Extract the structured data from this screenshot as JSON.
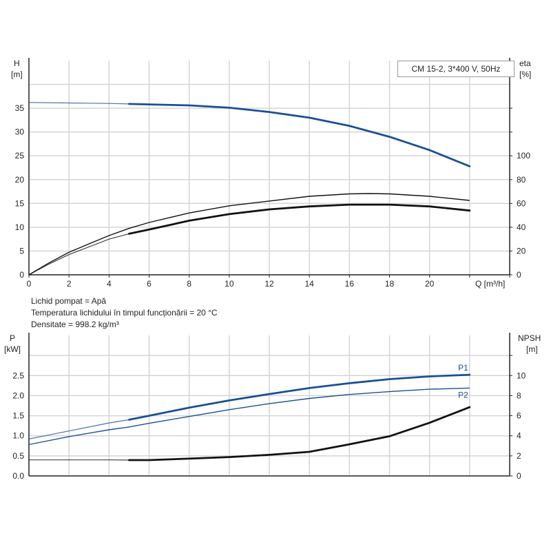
{
  "chart_data": [
    {
      "type": "line",
      "title": "CM 15-2, 3*400 V, 50Hz",
      "xlabel": "Q [m³/h]",
      "ylabel": "H [m]",
      "ylabel_name": "H",
      "ylabel_unit": "[m]",
      "y2label_name": "eta",
      "y2label_unit": "[%]",
      "xlim": [
        0,
        24
      ],
      "ylim": [
        0,
        45
      ],
      "y2lim": [
        0,
        180
      ],
      "x_ticks": [
        "0",
        "2",
        "4",
        "6",
        "8",
        "10",
        "12",
        "14",
        "16",
        "18",
        "20"
      ],
      "y_ticks": [
        "0",
        "5",
        "10",
        "15",
        "20",
        "25",
        "30",
        "35"
      ],
      "y2_ticks": [
        "0",
        "20",
        "40",
        "60",
        "80",
        "100"
      ],
      "grid": true,
      "series": [
        {
          "axis": "left",
          "color": "#1a4f94",
          "x": [
            0,
            2,
            4,
            5,
            6,
            8,
            10,
            12,
            14,
            16,
            18,
            20,
            22
          ],
          "y": [
            36.2,
            36.1,
            36.0,
            35.9,
            35.8,
            35.6,
            35.1,
            34.2,
            33.0,
            31.3,
            29.0,
            26.2,
            22.8
          ]
        },
        {
          "axis": "right",
          "color": "#111111",
          "x": [
            0,
            1,
            2,
            4,
            5,
            6,
            8,
            10,
            12,
            14,
            16,
            17,
            18,
            20,
            22
          ],
          "y": [
            0,
            10,
            19,
            33,
            39,
            44,
            52,
            58,
            62,
            66,
            68,
            68.3,
            68,
            66,
            62.5
          ]
        },
        {
          "axis": "right",
          "color": "#111111",
          "x": [
            0,
            1,
            2,
            4,
            5,
            6,
            8,
            10,
            12,
            14,
            16,
            18,
            20,
            22
          ],
          "y": [
            0,
            9,
            17,
            30,
            34.5,
            38,
            45.5,
            51,
            55,
            57.5,
            59,
            59,
            57.5,
            54
          ]
        }
      ]
    },
    {
      "type": "line",
      "xlim": [
        0,
        24
      ],
      "ylim": [
        0,
        3.5
      ],
      "y2lim": [
        0,
        14
      ],
      "ylabel_name": "P",
      "ylabel_unit": "[kW]",
      "y2label_name": "NPSH",
      "y2label_unit": "[m]",
      "y_ticks": [
        "0.0",
        "0.5",
        "1.0",
        "1.5",
        "2.0",
        "2.5"
      ],
      "y2_ticks": [
        "0",
        "2",
        "4",
        "6",
        "8",
        "10"
      ],
      "grid": true,
      "series": [
        {
          "name": "P1",
          "axis": "left",
          "color": "#1a4f94",
          "x": [
            0,
            2,
            4,
            5,
            6,
            8,
            10,
            12,
            14,
            16,
            18,
            20,
            22
          ],
          "y": [
            0.92,
            1.12,
            1.32,
            1.4,
            1.5,
            1.7,
            1.88,
            2.04,
            2.19,
            2.31,
            2.41,
            2.48,
            2.52
          ]
        },
        {
          "name": "P2",
          "axis": "left",
          "color": "#1a4f94",
          "x": [
            0,
            2,
            4,
            5,
            6,
            8,
            10,
            12,
            14,
            16,
            18,
            20,
            22
          ],
          "y": [
            0.78,
            0.98,
            1.15,
            1.22,
            1.31,
            1.48,
            1.65,
            1.8,
            1.93,
            2.03,
            2.1,
            2.16,
            2.19
          ]
        },
        {
          "axis": "right",
          "color": "#111111",
          "x": [
            0,
            2,
            4,
            5,
            6,
            8,
            10,
            12,
            14,
            16,
            18,
            20,
            22
          ],
          "y": [
            1.6,
            1.6,
            1.6,
            1.58,
            1.58,
            1.72,
            1.88,
            2.1,
            2.4,
            3.15,
            3.95,
            5.3,
            6.85
          ]
        }
      ]
    }
  ],
  "info": {
    "line1": "Lichid pompat = Apă",
    "line2": "Temperatura lichidului în timpul funcționării = 20 °C",
    "line3": "Densitate = 998.2 kg/m³"
  }
}
